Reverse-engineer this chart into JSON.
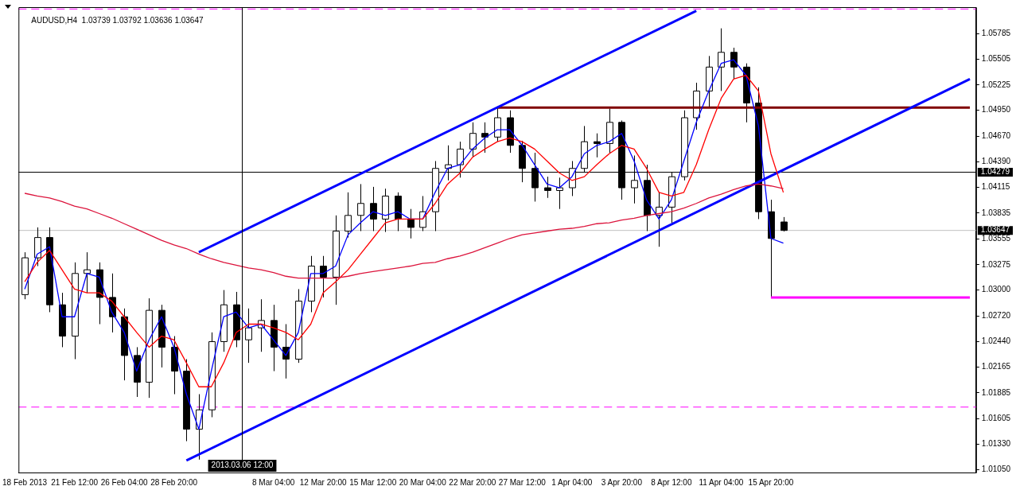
{
  "chart_data": {
    "type": "candlestick",
    "title": "AUDUSD,H4  1.03739 1.03792 1.03636 1.03647",
    "categories": [
      "18 Feb 2013",
      null,
      null,
      null,
      "21 Feb 12:00",
      null,
      null,
      null,
      "26 Feb 04:00",
      null,
      null,
      null,
      "28 Feb 20:00",
      null,
      null,
      null,
      null,
      null,
      null,
      null,
      "8 Mar 04:00",
      null,
      null,
      null,
      "12 Mar 20:00",
      null,
      null,
      null,
      "15 Mar 12:00",
      null,
      null,
      null,
      "20 Mar 04:00",
      null,
      null,
      null,
      "22 Mar 20:00",
      null,
      null,
      null,
      "27 Mar 12:00",
      null,
      null,
      null,
      "1 Apr 04:00",
      null,
      null,
      null,
      "3 Apr 20:00",
      null,
      null,
      null,
      "8 Apr 12:00",
      null,
      null,
      null,
      "11 Apr 04:00",
      null,
      null,
      null,
      "15 Apr 20:00",
      null,
      null,
      null,
      null,
      null,
      null,
      null,
      null,
      null,
      null,
      null,
      null,
      null,
      null,
      null,
      null
    ],
    "ohlc": [
      [
        1.0295,
        1.0341,
        1.029,
        1.0335
      ],
      [
        1.0335,
        1.0368,
        1.0326,
        1.0357
      ],
      [
        1.0357,
        1.0368,
        1.0276,
        1.0284
      ],
      [
        1.0284,
        1.0297,
        1.0238,
        1.025
      ],
      [
        1.025,
        1.033,
        1.0225,
        1.0318
      ],
      [
        1.0318,
        1.0341,
        1.0297,
        1.0322
      ],
      [
        1.0322,
        1.033,
        1.0263,
        1.0292
      ],
      [
        1.0292,
        1.0318,
        1.0254,
        1.0271
      ],
      [
        1.0271,
        1.028,
        1.0202,
        1.0229
      ],
      [
        1.0229,
        1.0238,
        1.0184,
        1.02
      ],
      [
        1.02,
        1.0291,
        1.0183,
        1.0278
      ],
      [
        1.0278,
        1.0284,
        1.0216,
        1.0238
      ],
      [
        1.0238,
        1.025,
        1.0187,
        1.0212
      ],
      [
        1.0212,
        1.0225,
        1.0136,
        1.0149
      ],
      [
        1.0149,
        1.0187,
        1.0116,
        1.017
      ],
      [
        1.017,
        1.0254,
        1.0162,
        1.0244
      ],
      [
        1.0244,
        1.03,
        1.0233,
        1.0284
      ],
      [
        1.0284,
        1.0298,
        1.0238,
        1.0246
      ],
      [
        1.0246,
        1.028,
        1.0221,
        1.0259
      ],
      [
        1.0259,
        1.029,
        1.0233,
        1.0267
      ],
      [
        1.0267,
        1.0284,
        1.0212,
        1.0238
      ],
      [
        1.0238,
        1.0263,
        1.0204,
        1.0225
      ],
      [
        1.0225,
        1.0301,
        1.0221,
        1.0288
      ],
      [
        1.0288,
        1.0337,
        1.0276,
        1.0326
      ],
      [
        1.0326,
        1.0337,
        1.0292,
        1.0314
      ],
      [
        1.0314,
        1.0381,
        1.0284,
        1.0364
      ],
      [
        1.0364,
        1.0406,
        1.0357,
        1.0381
      ],
      [
        1.0381,
        1.0415,
        1.0364,
        1.0394
      ],
      [
        1.0394,
        1.0412,
        1.0364,
        1.0377
      ],
      [
        1.0377,
        1.041,
        1.0363,
        1.0402
      ],
      [
        1.0402,
        1.0406,
        1.0364,
        1.0377
      ],
      [
        1.0377,
        1.0388,
        1.0356,
        1.0368
      ],
      [
        1.0368,
        1.0402,
        1.0364,
        1.0385
      ],
      [
        1.0385,
        1.044,
        1.0364,
        1.0432
      ],
      [
        1.0432,
        1.0457,
        1.0419,
        1.0436
      ],
      [
        1.0436,
        1.0461,
        1.0422,
        1.0453
      ],
      [
        1.0453,
        1.0482,
        1.0444,
        1.047
      ],
      [
        1.047,
        1.0482,
        1.0449,
        1.0466
      ],
      [
        1.0466,
        1.0499,
        1.0461,
        1.0487
      ],
      [
        1.0487,
        1.0495,
        1.0449,
        1.0457
      ],
      [
        1.0457,
        1.0462,
        1.0417,
        1.0432
      ],
      [
        1.0432,
        1.0449,
        1.0396,
        1.0411
      ],
      [
        1.0411,
        1.0423,
        1.04,
        1.0408
      ],
      [
        1.0408,
        1.0422,
        1.0388,
        1.0411
      ],
      [
        1.0411,
        1.044,
        1.0402,
        1.0432
      ],
      [
        1.0432,
        1.0478,
        1.0428,
        1.0461
      ],
      [
        1.0461,
        1.047,
        1.0444,
        1.0459
      ],
      [
        1.0459,
        1.0497,
        1.0449,
        1.0482
      ],
      [
        1.0482,
        1.0484,
        1.0398,
        1.0411
      ],
      [
        1.0411,
        1.0446,
        1.0394,
        1.0419
      ],
      [
        1.0419,
        1.0436,
        1.0364,
        1.0381
      ],
      [
        1.0381,
        1.0406,
        1.0347,
        1.039
      ],
      [
        1.039,
        1.0428,
        1.0373,
        1.0423
      ],
      [
        1.0423,
        1.0495,
        1.0419,
        1.0487
      ],
      [
        1.0487,
        1.0525,
        1.0474,
        1.0516
      ],
      [
        1.0516,
        1.0554,
        1.0499,
        1.0542
      ],
      [
        1.0542,
        1.0584,
        1.0516,
        1.0558
      ],
      [
        1.0558,
        1.0563,
        1.0529,
        1.0542
      ],
      [
        1.0542,
        1.0546,
        1.0482,
        1.0503
      ],
      [
        1.0503,
        1.052,
        1.0377,
        1.0385
      ],
      [
        1.0385,
        1.0398,
        1.0292,
        1.0356
      ],
      [
        1.03739,
        1.03792,
        1.03636,
        1.03647
      ],
      null,
      null,
      null,
      null,
      null,
      null,
      null,
      null,
      null,
      null,
      null,
      null,
      null,
      null,
      null
    ],
    "series": [
      {
        "type": "line",
        "color": "#dc143c",
        "values": [
          1.0405,
          1.0402,
          1.04,
          1.0396,
          1.0391,
          1.0388,
          1.0383,
          1.0378,
          1.0372,
          1.0366,
          1.036,
          1.0354,
          1.0349,
          1.0345,
          1.0339,
          1.0334,
          1.033,
          1.0327,
          1.0324,
          1.0322,
          1.0319,
          1.0315,
          1.0313,
          1.0313,
          1.0313,
          1.0313,
          1.0315,
          1.0318,
          1.032,
          1.0322,
          1.0324,
          1.0326,
          1.0329,
          1.033,
          1.0334,
          1.0337,
          1.0341,
          1.0346,
          1.0351,
          1.0356,
          1.036,
          1.0362,
          1.0364,
          1.0366,
          1.0367,
          1.0369,
          1.0372,
          1.0373,
          1.0376,
          1.0378,
          1.0381,
          1.0383,
          1.0385,
          1.0389,
          1.0394,
          1.04,
          1.0404,
          1.0409,
          1.0413,
          1.0415,
          1.0413,
          1.041,
          null,
          null,
          null,
          null,
          null,
          null,
          null,
          null,
          null,
          null,
          null,
          null,
          null,
          null,
          null
        ]
      },
      {
        "type": "line",
        "color": "#ff0000",
        "values": [
          1.0309,
          1.033,
          1.0343,
          1.0322,
          1.0301,
          1.0297,
          1.0297,
          1.0288,
          1.0271,
          1.0254,
          1.0238,
          1.025,
          1.0246,
          1.0221,
          1.0195,
          1.0195,
          1.0221,
          1.0254,
          1.0263,
          1.0263,
          1.0259,
          1.0254,
          1.0246,
          1.0263,
          1.0297,
          1.0309,
          1.0322,
          1.0339,
          1.0356,
          1.0373,
          1.0377,
          1.0377,
          1.0377,
          1.0394,
          1.0415,
          1.0427,
          1.0444,
          1.0453,
          1.0461,
          1.0465,
          1.0461,
          1.0453,
          1.044,
          1.0427,
          1.0419,
          1.0423,
          1.0436,
          1.0448,
          1.0457,
          1.0453,
          1.0432,
          1.0406,
          1.0402,
          1.0406,
          1.0436,
          1.0474,
          1.0508,
          1.0529,
          1.0533,
          1.0516,
          1.0448,
          1.0406,
          null,
          null,
          null,
          null,
          null,
          null,
          null,
          null,
          null,
          null,
          null,
          null,
          null,
          null,
          null
        ]
      },
      {
        "type": "line",
        "color": "#0000ff",
        "values": [
          1.0301,
          1.0339,
          1.0347,
          1.0271,
          1.0271,
          1.0318,
          1.0314,
          1.0276,
          1.0254,
          1.0212,
          1.0246,
          1.0271,
          1.0238,
          1.0187,
          1.0149,
          1.0212,
          1.0271,
          1.0276,
          1.0259,
          1.0263,
          1.0246,
          1.0229,
          1.0254,
          1.0318,
          1.0318,
          1.0326,
          1.036,
          1.0373,
          1.0385,
          1.0381,
          1.0385,
          1.0377,
          1.0377,
          1.0406,
          1.0432,
          1.0436,
          1.0453,
          1.0465,
          1.0474,
          1.0474,
          1.0457,
          1.0436,
          1.0415,
          1.0411,
          1.0423,
          1.0448,
          1.0457,
          1.0461,
          1.047,
          1.044,
          1.0398,
          1.0377,
          1.0398,
          1.044,
          1.0482,
          1.0516,
          1.0546,
          1.055,
          1.0533,
          1.0478,
          1.0356,
          1.0351,
          null,
          null,
          null,
          null,
          null,
          null,
          null,
          null,
          null,
          null,
          null,
          null,
          null,
          null,
          null
        ]
      },
      {
        "type": "line",
        "color": "#0000ff",
        "values": [
          null,
          null,
          null,
          null,
          null,
          null,
          null,
          null,
          null,
          null,
          null,
          null,
          null,
          null,
          1.0341,
          null,
          null,
          null,
          null,
          null,
          null,
          null,
          null,
          null,
          null,
          null,
          null,
          null,
          null,
          null,
          null,
          null,
          null,
          null,
          null,
          null,
          null,
          null,
          null,
          null,
          null,
          null,
          null,
          null,
          null,
          null,
          null,
          null,
          null,
          null,
          null,
          null,
          null,
          null,
          1.0603,
          null,
          null,
          null,
          null,
          null,
          null,
          null,
          null,
          null,
          null,
          null,
          null,
          null,
          null,
          null,
          null,
          null,
          null,
          null,
          null,
          null,
          null
        ]
      },
      {
        "type": "line",
        "color": "#0000ff",
        "values": [
          null,
          null,
          null,
          null,
          null,
          null,
          null,
          null,
          null,
          null,
          null,
          null,
          null,
          1.0115,
          null,
          null,
          null,
          null,
          null,
          null,
          null,
          null,
          null,
          null,
          null,
          null,
          null,
          null,
          null,
          null,
          null,
          null,
          null,
          null,
          null,
          null,
          null,
          null,
          null,
          null,
          null,
          null,
          null,
          null,
          null,
          null,
          null,
          null,
          null,
          null,
          null,
          null,
          null,
          null,
          null,
          null,
          null,
          null,
          null,
          null,
          null,
          null,
          null,
          null,
          null,
          null,
          null,
          null,
          null,
          null,
          null,
          null,
          null,
          null,
          null,
          null,
          1.0529
        ]
      },
      {
        "type": "line",
        "color": "#800000",
        "values": [
          null,
          null,
          null,
          null,
          null,
          null,
          null,
          null,
          null,
          null,
          null,
          null,
          null,
          null,
          null,
          null,
          null,
          null,
          null,
          null,
          null,
          null,
          null,
          null,
          null,
          null,
          null,
          null,
          null,
          null,
          null,
          null,
          null,
          null,
          null,
          null,
          null,
          null,
          1.0498,
          null,
          null,
          null,
          null,
          null,
          null,
          null,
          null,
          null,
          null,
          null,
          null,
          null,
          null,
          null,
          null,
          null,
          null,
          null,
          null,
          null,
          null,
          null,
          null,
          null,
          null,
          null,
          null,
          null,
          null,
          null,
          null,
          null,
          null,
          null,
          null,
          null,
          1.0498
        ]
      },
      {
        "type": "line",
        "color": "#ff00ff",
        "values": [
          null,
          null,
          null,
          null,
          null,
          null,
          null,
          null,
          null,
          null,
          null,
          null,
          null,
          null,
          null,
          null,
          null,
          null,
          null,
          null,
          null,
          null,
          null,
          null,
          null,
          null,
          null,
          null,
          null,
          null,
          null,
          null,
          null,
          null,
          null,
          null,
          null,
          null,
          null,
          null,
          null,
          null,
          null,
          null,
          null,
          null,
          null,
          null,
          null,
          null,
          null,
          null,
          null,
          null,
          null,
          null,
          null,
          null,
          null,
          null,
          1.0292,
          null,
          null,
          null,
          null,
          null,
          null,
          null,
          null,
          null,
          null,
          null,
          null,
          null,
          null,
          null,
          1.0292
        ]
      }
    ],
    "ylim": [
      1.0102,
      1.0607
    ],
    "yticks": [
      {
        "value": 1.05785,
        "label": "1.05785"
      },
      {
        "value": 1.05505,
        "label": "1.05505"
      },
      {
        "value": 1.05225,
        "label": "1.05225"
      },
      {
        "value": 1.0495,
        "label": "1.04950"
      },
      {
        "value": 1.0467,
        "label": "1.04670"
      },
      {
        "value": 1.0439,
        "label": "1.04390"
      },
      {
        "value": 1.04115,
        "label": "1.04115"
      },
      {
        "value": 1.03835,
        "label": "1.03835"
      },
      {
        "value": 1.03555,
        "label": "1.03555"
      },
      {
        "value": 1.03275,
        "label": "1.03275"
      },
      {
        "value": 1.03,
        "label": "1.03000"
      },
      {
        "value": 1.0272,
        "label": "1.02720"
      },
      {
        "value": 1.0244,
        "label": "1.02440"
      },
      {
        "value": 1.02165,
        "label": "1.02165"
      },
      {
        "value": 1.01885,
        "label": "1.01885"
      },
      {
        "value": 1.01605,
        "label": "1.01605"
      },
      {
        "value": 1.0133,
        "label": "1.01330"
      },
      {
        "value": 1.0105,
        "label": "1.01050"
      }
    ],
    "ref_lines": [
      {
        "axis": "y",
        "value": 1.0605,
        "color": "#ff00ff",
        "line_style": "dashed"
      },
      {
        "axis": "y",
        "value": 1.0173,
        "color": "#ff00ff",
        "line_style": "dashed"
      },
      {
        "axis": "y",
        "value": 1.03647,
        "label": "1.03647",
        "color": "#c0c0c0",
        "line_style": "solid"
      },
      {
        "axis": "y",
        "value": 1.04279,
        "label": "1.04279",
        "color": "#000000",
        "line_style": "solid"
      }
    ],
    "annotations": [
      "2013.03.06 12:00"
    ],
    "legend": false,
    "marker": "none"
  }
}
